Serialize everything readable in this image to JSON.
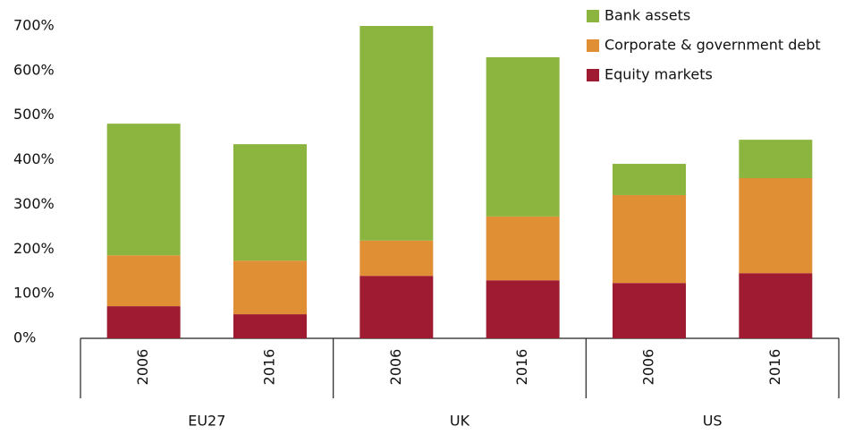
{
  "chart_data": {
    "type": "stacked-bar",
    "groups": [
      "EU27",
      "UK",
      "US"
    ],
    "categories": [
      "2006",
      "2016",
      "2006",
      "2016",
      "2006",
      "2016"
    ],
    "series": [
      {
        "name": "Equity markets",
        "color": "#9e1b32",
        "values": [
          72,
          54,
          140,
          130,
          124,
          146
        ]
      },
      {
        "name": "Corporate & government debt",
        "color": "#e08f35",
        "values": [
          114,
          120,
          79,
          143,
          197,
          213
        ]
      },
      {
        "name": "Bank assets",
        "color": "#8cb540",
        "values": [
          295,
          261,
          481,
          357,
          70,
          86
        ]
      }
    ],
    "ylim": [
      0,
      700
    ],
    "yticks": [
      {
        "value": 0,
        "label": "0%"
      },
      {
        "value": 100,
        "label": "100%"
      },
      {
        "value": 200,
        "label": "200%"
      },
      {
        "value": 300,
        "label": "300%"
      },
      {
        "value": 400,
        "label": "400%"
      },
      {
        "value": 500,
        "label": "500%"
      },
      {
        "value": 600,
        "label": "600%"
      },
      {
        "value": 700,
        "label": "700%"
      }
    ],
    "grid": false,
    "legend": "top-right"
  }
}
